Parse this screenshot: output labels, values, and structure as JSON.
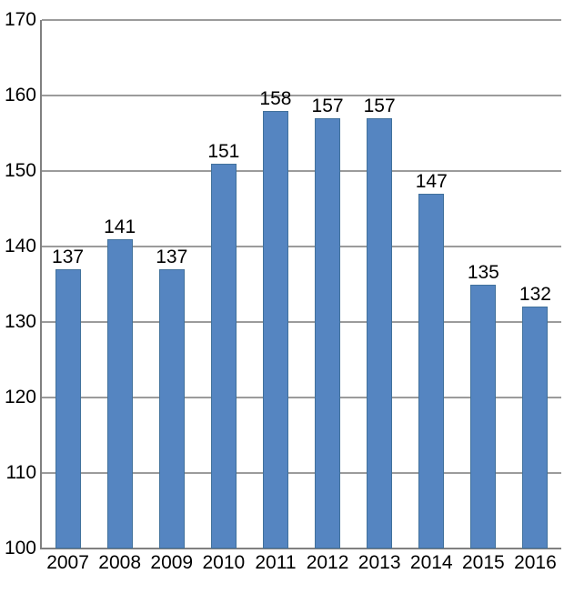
{
  "chart_data": {
    "type": "bar",
    "title": "",
    "xlabel": "",
    "ylabel": "",
    "categories": [
      "2007",
      "2008",
      "2009",
      "2010",
      "2011",
      "2012",
      "2013",
      "2014",
      "2015",
      "2016"
    ],
    "values": [
      137,
      141,
      137,
      151,
      158,
      157,
      157,
      147,
      135,
      132
    ],
    "data_labels": [
      137,
      141,
      137,
      151,
      158,
      157,
      157,
      147,
      135,
      132
    ],
    "ylim": [
      100,
      170
    ],
    "yticks": [
      100,
      110,
      120,
      130,
      140,
      150,
      160,
      170
    ],
    "grid": true,
    "legend": false,
    "colors": {
      "bar_fill": "#5585c1",
      "bar_border": "#41719c",
      "gridline": "#9b9b9b",
      "axis": "#808080",
      "text": "#000000",
      "background": "#ffffff"
    }
  }
}
